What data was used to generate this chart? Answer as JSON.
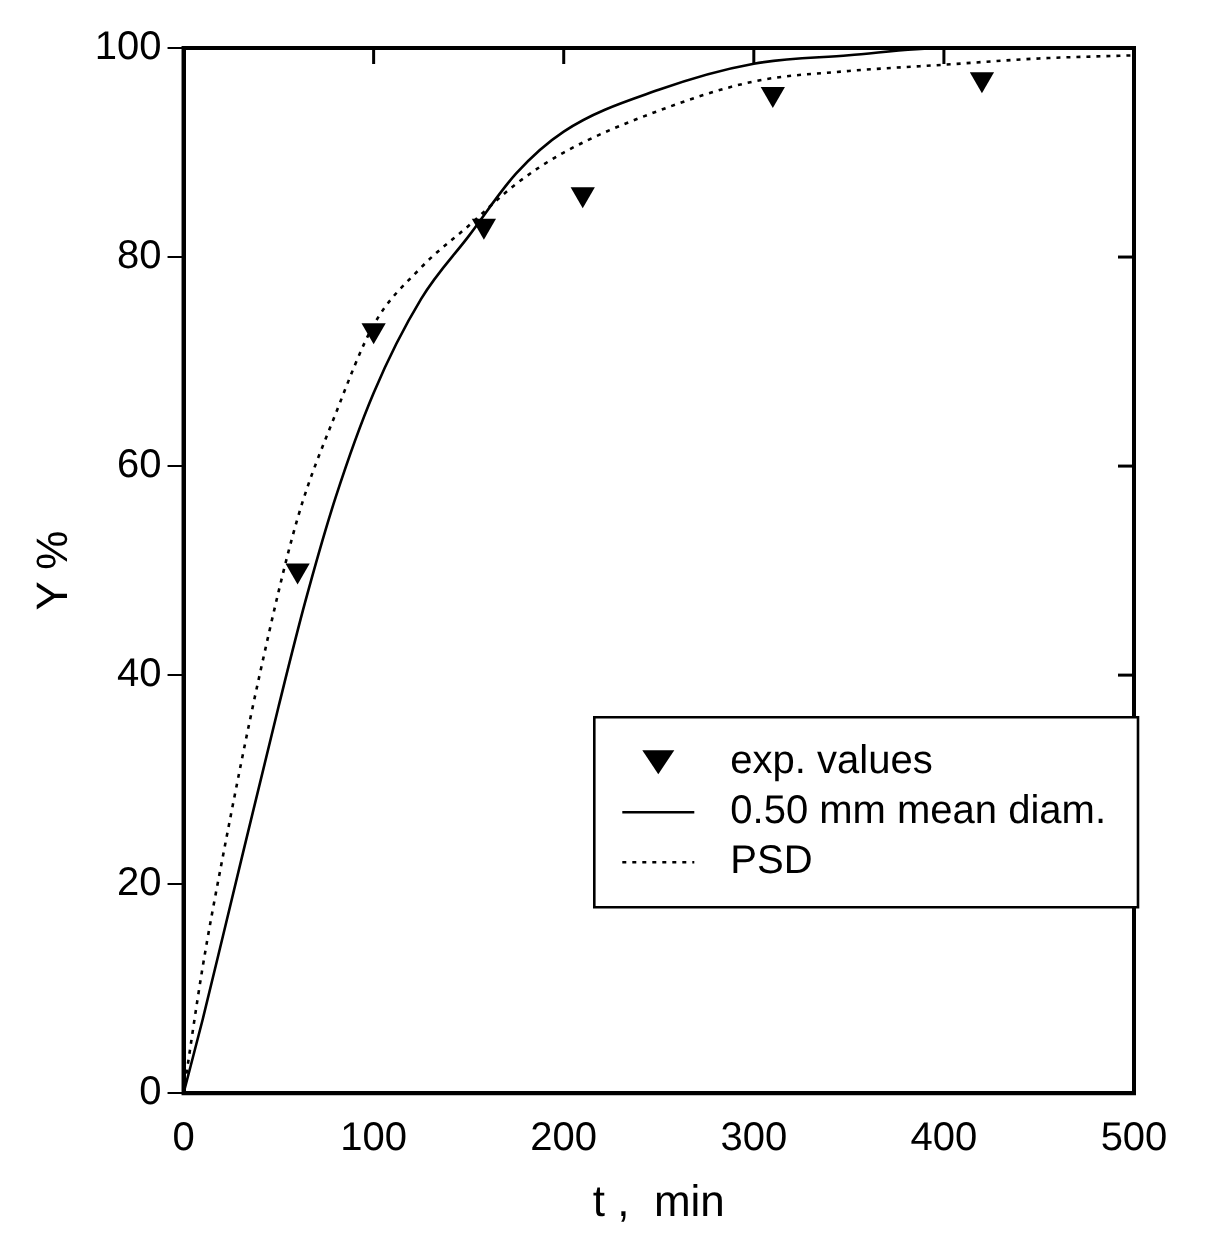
{
  "chart_data": {
    "type": "line",
    "xlabel": "t ,  min",
    "ylabel": "Y %",
    "xlim": [
      0,
      500
    ],
    "xticks": [
      0,
      100,
      200,
      300,
      400,
      500
    ],
    "ylim": [
      0,
      100
    ],
    "yticks": [
      0,
      20,
      40,
      60,
      80,
      100
    ],
    "grid": false,
    "legend": "bottom right",
    "series": [
      {
        "name": "exp. values",
        "type": "scatter",
        "marker": "triangle",
        "color": "#000000",
        "x": [
          60,
          100,
          158,
          210,
          310,
          420
        ],
        "values": [
          50,
          73,
          83,
          86,
          95.6,
          97
        ]
      },
      {
        "name": "0.50 mm mean diam.",
        "type": "line",
        "marker": "none",
        "line_style": "solid",
        "color": "#000000",
        "x": [
          0,
          10,
          22,
          50,
          64,
          80,
          100,
          125,
          150,
          175,
          200,
          250,
          300,
          350,
          400,
          500
        ],
        "values": [
          0,
          7,
          16,
          37,
          47,
          57,
          67,
          76,
          82,
          88,
          92,
          96,
          98.5,
          99.3,
          100,
          100
        ]
      },
      {
        "name": "PSD",
        "type": "line",
        "marker": "none",
        "line_style": "dotted",
        "color": "#000000",
        "x": [
          0,
          10,
          20,
          40,
          60,
          80,
          100,
          125,
          150,
          175,
          200,
          250,
          300,
          350,
          400,
          450,
          500
        ],
        "values": [
          0,
          12,
          22,
          40,
          55,
          65,
          73.5,
          79,
          83,
          87,
          90,
          94,
          96.8,
          97.8,
          98.4,
          99,
          99.3
        ]
      }
    ]
  }
}
